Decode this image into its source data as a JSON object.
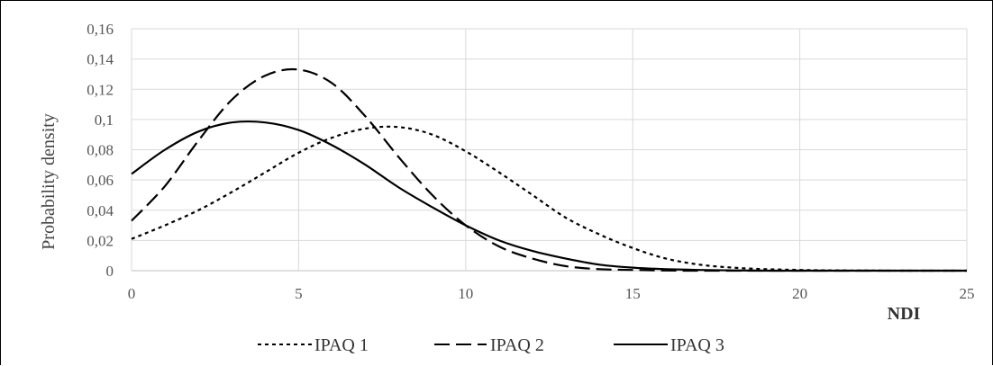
{
  "chart_data": {
    "type": "line",
    "xlabel": "NDI",
    "ylabel": "Probability density",
    "xlim": [
      0,
      25
    ],
    "ylim": [
      0,
      0.16
    ],
    "xticks": [
      0,
      5,
      10,
      15,
      20,
      25
    ],
    "yticks": [
      0,
      0.02,
      0.04,
      0.06,
      0.08,
      0.1,
      0.12,
      0.14,
      0.16
    ],
    "x_tick_labels": [
      "0",
      "5",
      "10",
      "15",
      "20",
      "25"
    ],
    "y_tick_labels": [
      "0",
      "0,02",
      "0,04",
      "0,06",
      "0,08",
      "0,1",
      "0,12",
      "0,14",
      "0,16"
    ],
    "grid": true,
    "legend_position": "bottom",
    "x": [
      0,
      1,
      2,
      3,
      4,
      5,
      6,
      7,
      8,
      9,
      10,
      11,
      12,
      13,
      14,
      15,
      16,
      17,
      18,
      19,
      20,
      21,
      22,
      23,
      24,
      25
    ],
    "series": [
      {
        "name": "IPAQ 1",
        "dash": "short-dash",
        "color": "#000000",
        "values": [
          0.021,
          0.03,
          0.04,
          0.052,
          0.065,
          0.078,
          0.088,
          0.094,
          0.095,
          0.09,
          0.079,
          0.065,
          0.05,
          0.035,
          0.024,
          0.015,
          0.008,
          0.004,
          0.002,
          0.001,
          0.0005,
          0.0002,
          0.0001,
          0,
          0,
          0
        ]
      },
      {
        "name": "IPAQ 2",
        "dash": "long-dash",
        "color": "#000000",
        "values": [
          0.033,
          0.056,
          0.086,
          0.113,
          0.129,
          0.133,
          0.124,
          0.102,
          0.075,
          0.05,
          0.03,
          0.016,
          0.008,
          0.003,
          0.001,
          0.0005,
          0.0001,
          0,
          0,
          0,
          0,
          0,
          0,
          0,
          0,
          0
        ]
      },
      {
        "name": "IPAQ 3",
        "dash": "solid",
        "color": "#000000",
        "values": [
          0.064,
          0.08,
          0.092,
          0.098,
          0.098,
          0.093,
          0.083,
          0.07,
          0.055,
          0.042,
          0.03,
          0.02,
          0.013,
          0.008,
          0.004,
          0.002,
          0.001,
          0.0005,
          0.0002,
          0,
          0,
          0,
          0,
          0,
          0,
          0
        ]
      }
    ]
  }
}
